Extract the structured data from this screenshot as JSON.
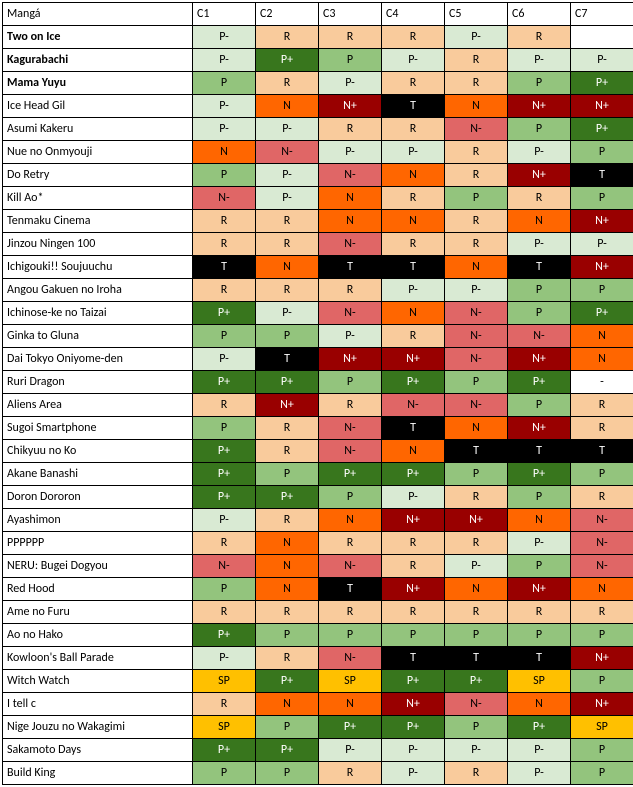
{
  "table": {
    "header_label": "Mangá",
    "columns": [
      "C1",
      "C2",
      "C3",
      "C4",
      "C5",
      "C6",
      "C7"
    ],
    "header_bg": "#ffffff",
    "border_color": "#000000",
    "colors": {
      "P+": {
        "bg": "#38761d",
        "fg": "#ffffff"
      },
      "P": {
        "bg": "#93c47d",
        "fg": "#000000"
      },
      "P-": {
        "bg": "#d9ead3",
        "fg": "#000000"
      },
      "R": {
        "bg": "#f9cb9c",
        "fg": "#000000"
      },
      "N-": {
        "bg": "#e06666",
        "fg": "#000000"
      },
      "N": {
        "bg": "#ff6600",
        "fg": "#000000"
      },
      "N+": {
        "bg": "#990000",
        "fg": "#ffffff"
      },
      "T": {
        "bg": "#000000",
        "fg": "#ffffff"
      },
      "SP": {
        "bg": "#ffc000",
        "fg": "#000000"
      },
      "-": {
        "bg": "#ffffff",
        "fg": "#000000"
      },
      "": {
        "bg": "#ffffff",
        "fg": "#000000"
      }
    },
    "rows": [
      {
        "name": "Two on Ice",
        "bold": true,
        "cells": [
          "P-",
          "R",
          "R",
          "R",
          "P-",
          "R",
          ""
        ]
      },
      {
        "name": "Kagurabachi",
        "bold": true,
        "cells": [
          "P-",
          "P+",
          "P",
          "P-",
          "R",
          "P-",
          "P-"
        ]
      },
      {
        "name": "Mama Yuyu",
        "bold": true,
        "cells": [
          "P",
          "R",
          "P-",
          "R",
          "R",
          "P",
          "P+"
        ]
      },
      {
        "name": "Ice Head Gil",
        "bold": false,
        "cells": [
          "P-",
          "N",
          "N+",
          "T",
          "N",
          "N+",
          "N+"
        ]
      },
      {
        "name": "Asumi Kakeru",
        "bold": false,
        "cells": [
          "P-",
          "P-",
          "R",
          "R",
          "N-",
          "P",
          "P+"
        ]
      },
      {
        "name": "Nue no Onmyouji",
        "bold": false,
        "cells": [
          "N",
          "N-",
          "P-",
          "P-",
          "R",
          "P-",
          "P"
        ]
      },
      {
        "name": "Do Retry",
        "bold": false,
        "cells": [
          "P",
          "P-",
          "N-",
          "N",
          "R",
          "N+",
          "T"
        ]
      },
      {
        "name": "Kill Ao*",
        "bold": false,
        "cells": [
          "N-",
          "P-",
          "N",
          "R",
          "P",
          "R",
          "P"
        ]
      },
      {
        "name": "Tenmaku Cinema",
        "bold": false,
        "cells": [
          "R",
          "R",
          "N",
          "N",
          "R",
          "N",
          "N+"
        ]
      },
      {
        "name": "Jinzou Ningen 100",
        "bold": false,
        "cells": [
          "R",
          "R",
          "N-",
          "R",
          "R",
          "P-",
          "P-"
        ]
      },
      {
        "name": "Ichigouki!! Soujuuchu",
        "bold": false,
        "cells": [
          "T",
          "N",
          "T",
          "T",
          "N",
          "T",
          "N+"
        ]
      },
      {
        "name": "Angou Gakuen no Iroha",
        "bold": false,
        "cells": [
          "R",
          "R",
          "R",
          "P-",
          "P-",
          "P",
          "P"
        ]
      },
      {
        "name": "Ichinose-ke no Taizai",
        "bold": false,
        "cells": [
          "P+",
          "P-",
          "N-",
          "N",
          "N-",
          "P",
          "P+"
        ]
      },
      {
        "name": "Ginka to Gluna",
        "bold": false,
        "cells": [
          "P",
          "P",
          "P-",
          "R",
          "N-",
          "N-",
          "N"
        ]
      },
      {
        "name": "Dai Tokyo Oniyome-den",
        "bold": false,
        "cells": [
          "P-",
          "T",
          "N+",
          "N+",
          "N-",
          "N+",
          "N"
        ]
      },
      {
        "name": "Ruri Dragon",
        "bold": false,
        "cells": [
          "P+",
          "P+",
          "P",
          "P+",
          "P",
          "P+",
          "-"
        ]
      },
      {
        "name": "Aliens Area",
        "bold": false,
        "cells": [
          "R",
          "N+",
          "R",
          "N-",
          "N-",
          "P",
          "R"
        ]
      },
      {
        "name": "Sugoi Smartphone",
        "bold": false,
        "cells": [
          "P",
          "R",
          "N-",
          "T",
          "N",
          "N+",
          "R"
        ]
      },
      {
        "name": "Chikyuu no Ko",
        "bold": false,
        "cells": [
          "P+",
          "R",
          "N-",
          "N",
          "T",
          "T",
          "T"
        ]
      },
      {
        "name": "Akane Banashi",
        "bold": false,
        "cells": [
          "P+",
          "P",
          "P+",
          "P+",
          "P",
          "P+",
          "P"
        ]
      },
      {
        "name": "Doron Dororon",
        "bold": false,
        "cells": [
          "P+",
          "P+",
          "P",
          "P-",
          "R",
          "P",
          "R"
        ]
      },
      {
        "name": "Ayashimon",
        "bold": false,
        "cells": [
          "P-",
          "R",
          "N",
          "N+",
          "N+",
          "N",
          "N-"
        ]
      },
      {
        "name": "PPPPPP",
        "bold": false,
        "cells": [
          "R",
          "N",
          "R",
          "R",
          "R",
          "P-",
          "N-"
        ]
      },
      {
        "name": "NERU: Bugei Dogyou",
        "bold": false,
        "cells": [
          "N-",
          "N",
          "N-",
          "R",
          "P-",
          "P",
          "N-"
        ]
      },
      {
        "name": "Red Hood",
        "bold": false,
        "cells": [
          "P",
          "N",
          "T",
          "N+",
          "N",
          "N+",
          "N"
        ]
      },
      {
        "name": "Ame no Furu",
        "bold": false,
        "cells": [
          "R",
          "R",
          "R",
          "R",
          "R",
          "R",
          "R"
        ]
      },
      {
        "name": "Ao no Hako",
        "bold": false,
        "cells": [
          "P+",
          "P",
          "P",
          "P",
          "P",
          "P",
          "P"
        ]
      },
      {
        "name": "Kowloon's Ball Parade",
        "bold": false,
        "cells": [
          "P-",
          "R",
          "N-",
          "T",
          "T",
          "T",
          "N+"
        ]
      },
      {
        "name": "Witch Watch",
        "bold": false,
        "cells": [
          "SP",
          "P+",
          "SP",
          "P+",
          "P+",
          "SP",
          "P"
        ]
      },
      {
        "name": "I tell c",
        "bold": false,
        "cells": [
          "R",
          "N",
          "N",
          "N+",
          "N-",
          "N",
          "N+"
        ]
      },
      {
        "name": "Nige Jouzu no Wakagimi",
        "bold": false,
        "cells": [
          "SP",
          "P",
          "P+",
          "P+",
          "P",
          "P+",
          "SP"
        ]
      },
      {
        "name": "Sakamoto Days",
        "bold": false,
        "cells": [
          "P+",
          "P+",
          "P-",
          "P-",
          "P-",
          "P-",
          "P"
        ]
      },
      {
        "name": "Build King",
        "bold": false,
        "cells": [
          "P",
          "P",
          "R",
          "P-",
          "R",
          "P-",
          "P"
        ]
      }
    ]
  }
}
